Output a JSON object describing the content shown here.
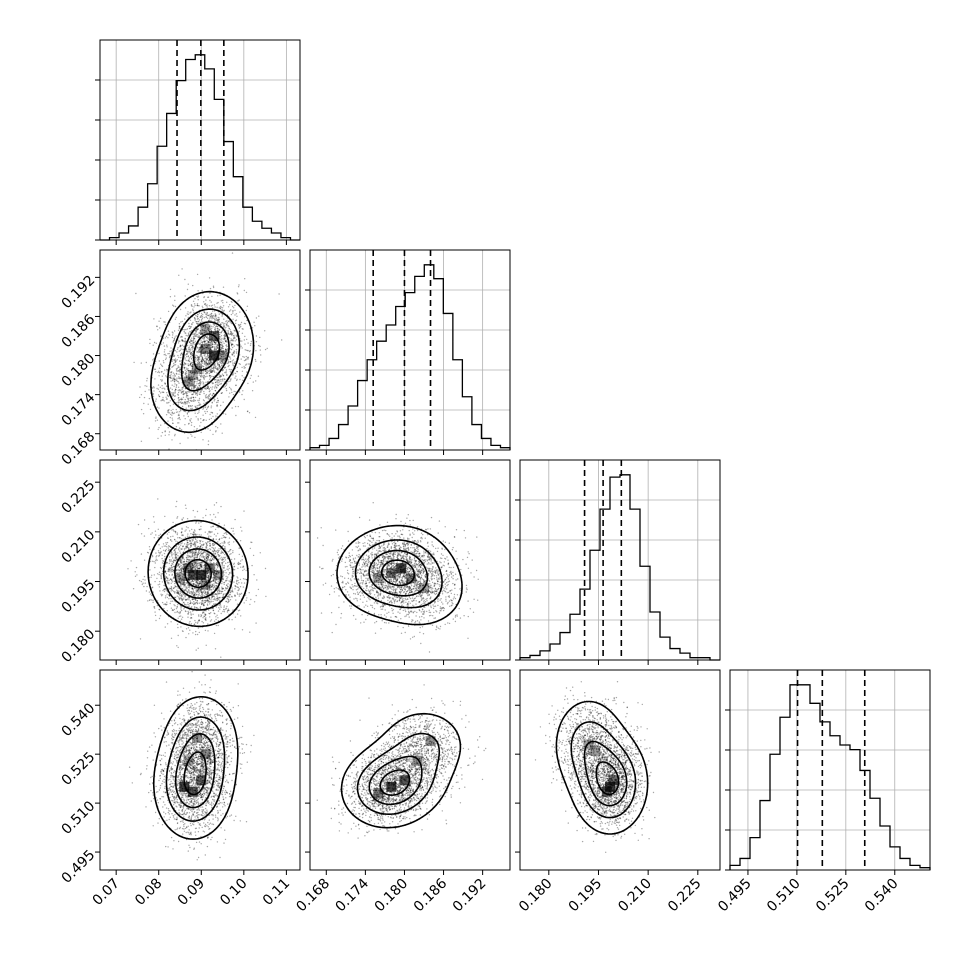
{
  "chart_data": {
    "type": "corner",
    "parameters": [
      {
        "ticks": [
          "0.07",
          "0.08",
          "0.09",
          "0.10",
          "0.11"
        ],
        "tick_values": [
          0.07,
          0.08,
          0.09,
          0.1,
          0.11
        ],
        "range": [
          0.0662,
          0.1132
        ],
        "quantiles": [
          0.0843,
          0.0899,
          0.0953
        ],
        "hist_counts": [
          0,
          1,
          3,
          6,
          14,
          24,
          40,
          54,
          68,
          77,
          79,
          73,
          60,
          42,
          27,
          14,
          8,
          5,
          3,
          1,
          0
        ]
      },
      {
        "ticks": [
          "0.168",
          "0.174",
          "0.180",
          "0.186",
          "0.192"
        ],
        "tick_values": [
          0.168,
          0.174,
          0.18,
          0.186,
          0.192
        ],
        "range": [
          0.1655,
          0.1962
        ],
        "quantiles": [
          0.1752,
          0.18,
          0.184
        ],
        "hist_counts": [
          1,
          2,
          5,
          11,
          19,
          30,
          39,
          47,
          54,
          62,
          68,
          75,
          80,
          74,
          59,
          39,
          23,
          11,
          5,
          2,
          1
        ]
      },
      {
        "ticks": [
          "0.180",
          "0.195",
          "0.210",
          "0.225"
        ],
        "tick_values": [
          0.18,
          0.195,
          0.21,
          0.225
        ],
        "range": [
          0.1713,
          0.2317
        ],
        "quantiles": [
          0.1908,
          0.1964,
          0.2019
        ],
        "hist_counts": [
          1,
          2,
          4,
          7,
          12,
          20,
          31,
          48,
          66,
          80,
          81,
          66,
          41,
          21,
          10,
          5,
          3,
          1,
          1,
          0
        ]
      },
      {
        "ticks": [
          "0.495",
          "0.510",
          "0.525",
          "0.540"
        ],
        "tick_values": [
          0.495,
          0.51,
          0.525,
          0.54
        ],
        "range": [
          0.4895,
          0.5508
        ],
        "quantiles": [
          0.5102,
          0.5178,
          0.5308
        ],
        "hist_counts": [
          2,
          5,
          14,
          30,
          50,
          66,
          80,
          80,
          72,
          64,
          58,
          54,
          52,
          43,
          31,
          19,
          10,
          5,
          2,
          1
        ]
      }
    ],
    "pairs": [
      {
        "row": 1,
        "col": 0,
        "blobs": [
          [
            0.092,
            0.1816,
            1.0
          ],
          [
            0.087,
            0.1752,
            0.55
          ]
        ],
        "spread": [
          0.005,
          0.004
        ],
        "density_cells": [
          [
            0.093,
            0.18,
            1.0
          ],
          [
            0.093,
            0.183,
            0.75
          ],
          [
            0.091,
            0.181,
            0.55
          ],
          [
            0.089,
            0.178,
            0.4
          ],
          [
            0.087,
            0.176,
            0.45
          ],
          [
            0.088,
            0.177,
            0.3
          ],
          [
            0.095,
            0.18,
            0.45
          ],
          [
            0.091,
            0.184,
            0.35
          ]
        ]
      },
      {
        "row": 2,
        "col": 0,
        "blobs": [
          [
            0.09,
            0.1965,
            1.0
          ],
          [
            0.088,
            0.199,
            0.6
          ]
        ],
        "spread": [
          0.0055,
          0.0075
        ],
        "density_cells": [
          [
            0.09,
            0.197,
            1.0
          ],
          [
            0.088,
            0.197,
            0.85
          ],
          [
            0.092,
            0.199,
            0.65
          ],
          [
            0.087,
            0.199,
            0.5
          ],
          [
            0.091,
            0.194,
            0.45
          ],
          [
            0.085,
            0.196,
            0.35
          ],
          [
            0.094,
            0.197,
            0.35
          ]
        ]
      },
      {
        "row": 2,
        "col": 1,
        "blobs": [
          [
            0.1795,
            0.199,
            1.0
          ],
          [
            0.183,
            0.192,
            0.45
          ],
          [
            0.176,
            0.197,
            0.55
          ]
        ],
        "spread": [
          0.0038,
          0.0065
        ],
        "density_cells": [
          [
            0.1795,
            0.199,
            1.0
          ],
          [
            0.178,
            0.1975,
            0.6
          ],
          [
            0.181,
            0.196,
            0.5
          ],
          [
            0.176,
            0.196,
            0.4
          ],
          [
            0.183,
            0.193,
            0.35
          ]
        ]
      },
      {
        "row": 3,
        "col": 0,
        "blobs": [
          [
            0.088,
            0.515,
            1.0
          ],
          [
            0.09,
            0.528,
            0.7
          ]
        ],
        "spread": [
          0.0045,
          0.008
        ],
        "density_cells": [
          [
            0.086,
            0.515,
            1.0
          ],
          [
            0.088,
            0.5135,
            0.85
          ],
          [
            0.09,
            0.517,
            0.75
          ],
          [
            0.091,
            0.525,
            0.5
          ],
          [
            0.089,
            0.53,
            0.45
          ],
          [
            0.087,
            0.523,
            0.35
          ]
        ]
      },
      {
        "row": 3,
        "col": 1,
        "blobs": [
          [
            0.177,
            0.514,
            1.0
          ],
          [
            0.18,
            0.518,
            0.85
          ],
          [
            0.183,
            0.528,
            0.6
          ]
        ],
        "spread": [
          0.0035,
          0.006
        ],
        "density_cells": [
          [
            0.178,
            0.515,
            1.0
          ],
          [
            0.18,
            0.517,
            0.85
          ],
          [
            0.176,
            0.513,
            0.6
          ],
          [
            0.182,
            0.523,
            0.5
          ],
          [
            0.184,
            0.529,
            0.45
          ]
        ]
      },
      {
        "row": 3,
        "col": 2,
        "blobs": [
          [
            0.1985,
            0.516,
            1.0
          ],
          [
            0.192,
            0.528,
            0.55
          ]
        ],
        "spread": [
          0.0055,
          0.0075
        ],
        "density_cells": [
          [
            0.1985,
            0.515,
            1.0
          ],
          [
            0.1975,
            0.5135,
            0.85
          ],
          [
            0.1995,
            0.517,
            0.7
          ],
          [
            0.194,
            0.526,
            0.4
          ],
          [
            0.192,
            0.528,
            0.35
          ]
        ]
      }
    ],
    "grid": true,
    "colors": {
      "scatter": "#000000",
      "density_max": "#000000",
      "contour": "#000000",
      "grid": "#b0b0b0"
    }
  }
}
